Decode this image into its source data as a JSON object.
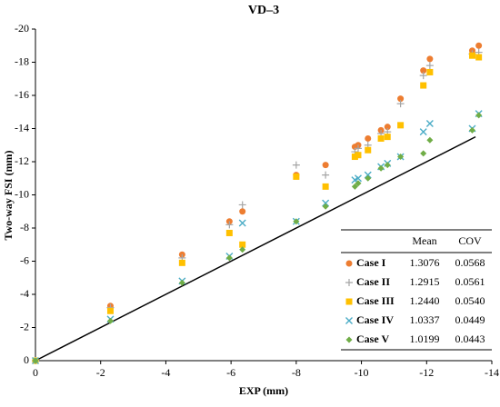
{
  "chart_data": {
    "type": "scatter",
    "title": "VD–3",
    "xlabel": "EXP (mm)",
    "ylabel": "Two-way FSI (mm)",
    "x": [
      0,
      -2.3,
      -4.5,
      -5.95,
      -6.35,
      -8.0,
      -8.9,
      -9.8,
      -9.9,
      -10.2,
      -10.6,
      -10.8,
      -11.2,
      -11.9,
      -12.1,
      -13.4,
      -13.6
    ],
    "series": [
      {
        "name": "Case I",
        "color": "#ED7D31",
        "marker": "circle",
        "values": [
          0,
          -3.3,
          -6.4,
          -8.4,
          -9.0,
          -11.2,
          -11.8,
          -12.9,
          -13.0,
          -13.4,
          -13.9,
          -14.1,
          -15.8,
          -17.5,
          -18.2,
          -18.7,
          -19.0
        ]
      },
      {
        "name": "Case II",
        "color": "#A5A5A5",
        "marker": "plus",
        "values": [
          0,
          -3.2,
          -6.2,
          -8.2,
          -9.4,
          -11.8,
          -11.2,
          -12.6,
          -12.8,
          -13.0,
          -13.7,
          -13.8,
          -15.5,
          -17.2,
          -17.8,
          -18.5,
          -18.6
        ]
      },
      {
        "name": "Case III",
        "color": "#FFC000",
        "marker": "square",
        "values": [
          0,
          -3.0,
          -5.9,
          -7.7,
          -7.0,
          -11.1,
          -10.5,
          -12.3,
          -12.4,
          -12.7,
          -13.4,
          -13.5,
          -14.2,
          -16.6,
          -17.4,
          -18.4,
          -18.3
        ]
      },
      {
        "name": "Case IV",
        "color": "#4BACC6",
        "marker": "cross",
        "values": [
          0,
          -2.5,
          -4.8,
          -6.3,
          -8.3,
          -8.4,
          -9.5,
          -10.9,
          -11.0,
          -11.2,
          -11.7,
          -11.9,
          -12.3,
          -13.8,
          -14.3,
          -14.0,
          -14.9
        ]
      },
      {
        "name": "Case V",
        "color": "#70AD47",
        "marker": "diamond",
        "values": [
          0,
          -2.4,
          -4.7,
          -6.2,
          -6.7,
          -8.4,
          -9.3,
          -10.5,
          -10.7,
          -11.0,
          -11.6,
          -11.8,
          -12.3,
          -12.5,
          -13.3,
          -13.9,
          -14.8
        ]
      }
    ],
    "reference_line": {
      "x": [
        0,
        -13.5
      ],
      "y": [
        0,
        -13.5
      ]
    },
    "legend_table": {
      "columns": [
        "Mean",
        "COV"
      ],
      "rows": [
        [
          "1.3076",
          "0.0568"
        ],
        [
          "1.2915",
          "0.0561"
        ],
        [
          "1.2440",
          "0.0540"
        ],
        [
          "1.0337",
          "0.0449"
        ],
        [
          "1.0199",
          "0.0443"
        ]
      ]
    },
    "xlim": [
      0,
      -14
    ],
    "ylim": [
      0,
      -20
    ],
    "xticks": [
      0,
      -2,
      -4,
      -6,
      -8,
      -10,
      -12,
      -14
    ],
    "yticks": [
      0,
      -2,
      -4,
      -6,
      -8,
      -10,
      -12,
      -14,
      -16,
      -18,
      -20
    ]
  }
}
